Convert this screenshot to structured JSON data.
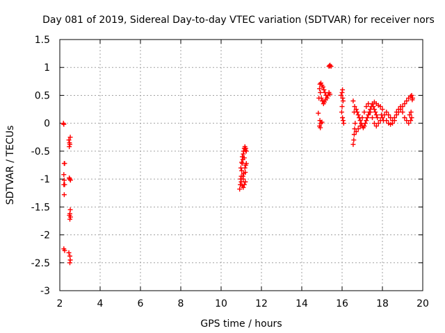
{
  "chart_data": {
    "type": "scatter",
    "title": "Day 081 of 2019, Sidereal Day-to-day VTEC variation (SDTVAR) for receiver nors",
    "xlabel": "GPS time / hours",
    "ylabel": "SDTVAR / TECUs",
    "xlim": [
      2,
      20
    ],
    "ylim": [
      -3,
      1.5
    ],
    "xticks": [
      2,
      4,
      6,
      8,
      10,
      12,
      14,
      16,
      18,
      20
    ],
    "yticks": [
      -3,
      -2.5,
      -2,
      -1.5,
      -1,
      -0.5,
      0,
      0.5,
      1,
      1.5
    ],
    "xtick_labels": [
      "2",
      "4",
      "6",
      "8",
      "10",
      "12",
      "14",
      "16",
      "18",
      "20"
    ],
    "ytick_labels": [
      "-3",
      "-2.5",
      "-2",
      "-1.5",
      "-1",
      "-0.5",
      "0",
      "0.5",
      "1",
      "1.5"
    ],
    "grid": true,
    "marker": "plus",
    "marker_color": "#ff0000",
    "series": [
      {
        "name": "SDTVAR",
        "points": [
          [
            2.18,
            0.0
          ],
          [
            2.2,
            -0.02
          ],
          [
            2.22,
            -0.72
          ],
          [
            2.24,
            -0.72
          ],
          [
            2.2,
            -0.92
          ],
          [
            2.22,
            -1.02
          ],
          [
            2.2,
            -1.1
          ],
          [
            2.24,
            -1.1
          ],
          [
            2.22,
            -1.28
          ],
          [
            2.2,
            -2.25
          ],
          [
            2.24,
            -2.28
          ],
          [
            2.45,
            -0.3
          ],
          [
            2.48,
            -0.35
          ],
          [
            2.5,
            -0.38
          ],
          [
            2.52,
            -0.25
          ],
          [
            2.47,
            -0.42
          ],
          [
            2.5,
            -1.0
          ],
          [
            2.53,
            -1.02
          ],
          [
            2.47,
            -0.98
          ],
          [
            2.52,
            -1.55
          ],
          [
            2.5,
            -1.62
          ],
          [
            2.48,
            -1.65
          ],
          [
            2.53,
            -1.68
          ],
          [
            2.5,
            -1.72
          ],
          [
            2.45,
            -2.32
          ],
          [
            2.5,
            -2.38
          ],
          [
            2.52,
            -2.45
          ],
          [
            2.5,
            -2.5
          ],
          [
            10.92,
            -1.18
          ],
          [
            10.95,
            -1.1
          ],
          [
            10.97,
            -1.0
          ],
          [
            11.0,
            -0.95
          ],
          [
            11.02,
            -0.85
          ],
          [
            10.98,
            -0.8
          ],
          [
            11.05,
            -0.72
          ],
          [
            11.08,
            -0.65
          ],
          [
            11.05,
            -0.6
          ],
          [
            11.1,
            -0.55
          ],
          [
            11.12,
            -0.5
          ],
          [
            11.15,
            -0.45
          ],
          [
            11.18,
            -0.42
          ],
          [
            11.2,
            -0.48
          ],
          [
            11.22,
            -0.45
          ],
          [
            11.25,
            -0.5
          ],
          [
            11.0,
            -1.05
          ],
          [
            11.05,
            -1.12
          ],
          [
            11.1,
            -1.15
          ],
          [
            11.15,
            -1.1
          ],
          [
            11.2,
            -1.05
          ],
          [
            11.12,
            -0.9
          ],
          [
            11.18,
            -0.8
          ],
          [
            11.22,
            -0.75
          ],
          [
            11.25,
            -0.72
          ],
          [
            11.08,
            -0.95
          ],
          [
            11.02,
            -0.7
          ],
          [
            11.15,
            -0.62
          ],
          [
            11.2,
            -0.88
          ],
          [
            11.1,
            -1.0
          ],
          [
            14.82,
            0.18
          ],
          [
            14.85,
            0.45
          ],
          [
            14.88,
            0.62
          ],
          [
            14.9,
            0.7
          ],
          [
            14.95,
            0.72
          ],
          [
            15.0,
            0.68
          ],
          [
            15.05,
            0.65
          ],
          [
            15.1,
            0.6
          ],
          [
            15.15,
            0.55
          ],
          [
            15.2,
            0.5
          ],
          [
            15.25,
            0.45
          ],
          [
            15.3,
            0.5
          ],
          [
            15.35,
            0.55
          ],
          [
            15.4,
            0.52
          ],
          [
            14.92,
            0.55
          ],
          [
            14.97,
            0.45
          ],
          [
            15.02,
            0.4
          ],
          [
            15.08,
            0.35
          ],
          [
            15.12,
            0.38
          ],
          [
            15.18,
            0.42
          ],
          [
            14.9,
            0.05
          ],
          [
            14.95,
            0.0
          ],
          [
            14.88,
            -0.05
          ],
          [
            14.92,
            -0.08
          ],
          [
            15.0,
            0.02
          ],
          [
            15.35,
            1.02
          ],
          [
            15.4,
            1.04
          ],
          [
            15.45,
            1.02
          ],
          [
            15.38,
            1.03
          ],
          [
            15.95,
            0.5
          ],
          [
            16.0,
            0.55
          ],
          [
            16.02,
            0.6
          ],
          [
            16.05,
            0.4
          ],
          [
            16.0,
            0.3
          ],
          [
            15.98,
            0.2
          ],
          [
            16.02,
            0.1
          ],
          [
            16.05,
            0.05
          ],
          [
            16.08,
            0.0
          ],
          [
            16.03,
            0.45
          ],
          [
            16.55,
            -0.38
          ],
          [
            16.58,
            -0.3
          ],
          [
            16.6,
            -0.2
          ],
          [
            16.62,
            -0.1
          ],
          [
            16.65,
            0.0
          ],
          [
            16.6,
            0.2
          ],
          [
            16.62,
            0.3
          ],
          [
            16.55,
            0.4
          ],
          [
            16.7,
            0.25
          ],
          [
            16.75,
            0.2
          ],
          [
            16.8,
            0.15
          ],
          [
            16.85,
            0.1
          ],
          [
            16.9,
            0.05
          ],
          [
            16.95,
            0.0
          ],
          [
            17.0,
            -0.05
          ],
          [
            17.05,
            -0.08
          ],
          [
            17.1,
            -0.05
          ],
          [
            17.15,
            0.0
          ],
          [
            17.2,
            0.05
          ],
          [
            17.25,
            0.1
          ],
          [
            17.3,
            0.15
          ],
          [
            17.35,
            0.2
          ],
          [
            17.4,
            0.25
          ],
          [
            17.45,
            0.3
          ],
          [
            17.5,
            0.35
          ],
          [
            17.55,
            0.3
          ],
          [
            17.6,
            0.25
          ],
          [
            17.65,
            0.2
          ],
          [
            17.7,
            0.15
          ],
          [
            17.75,
            0.1
          ],
          [
            16.7,
            -0.15
          ],
          [
            16.8,
            -0.1
          ],
          [
            16.9,
            -0.05
          ],
          [
            17.0,
            0.1
          ],
          [
            17.1,
            0.2
          ],
          [
            17.2,
            0.3
          ],
          [
            17.3,
            0.35
          ],
          [
            17.4,
            0.2
          ],
          [
            17.5,
            0.1
          ],
          [
            17.6,
            0.0
          ],
          [
            17.7,
            -0.05
          ],
          [
            17.8,
            0.0
          ],
          [
            17.9,
            0.05
          ],
          [
            18.0,
            0.1
          ],
          [
            18.1,
            0.15
          ],
          [
            18.2,
            0.2
          ],
          [
            18.3,
            0.15
          ],
          [
            18.4,
            0.1
          ],
          [
            18.5,
            0.05
          ],
          [
            18.6,
            0.1
          ],
          [
            18.7,
            0.15
          ],
          [
            18.8,
            0.2
          ],
          [
            18.9,
            0.25
          ],
          [
            19.0,
            0.3
          ],
          [
            19.1,
            0.35
          ],
          [
            19.2,
            0.4
          ],
          [
            19.3,
            0.45
          ],
          [
            19.4,
            0.48
          ],
          [
            19.45,
            0.5
          ],
          [
            18.2,
            0.05
          ],
          [
            18.3,
            0.0
          ],
          [
            18.4,
            -0.02
          ],
          [
            18.5,
            0.0
          ],
          [
            18.6,
            0.05
          ],
          [
            18.7,
            0.2
          ],
          [
            18.8,
            0.25
          ],
          [
            18.9,
            0.3
          ],
          [
            19.0,
            0.2
          ],
          [
            19.1,
            0.1
          ],
          [
            19.2,
            0.05
          ],
          [
            19.3,
            0.0
          ],
          [
            19.4,
            0.05
          ],
          [
            19.45,
            0.1
          ],
          [
            18.0,
            0.25
          ],
          [
            17.9,
            0.3
          ],
          [
            17.8,
            0.32
          ],
          [
            17.7,
            0.35
          ],
          [
            17.6,
            0.38
          ],
          [
            17.95,
            0.15
          ],
          [
            18.05,
            0.05
          ],
          [
            19.35,
            0.15
          ],
          [
            19.42,
            0.2
          ],
          [
            19.5,
            0.45
          ],
          [
            19.48,
            0.42
          ]
        ]
      }
    ]
  }
}
